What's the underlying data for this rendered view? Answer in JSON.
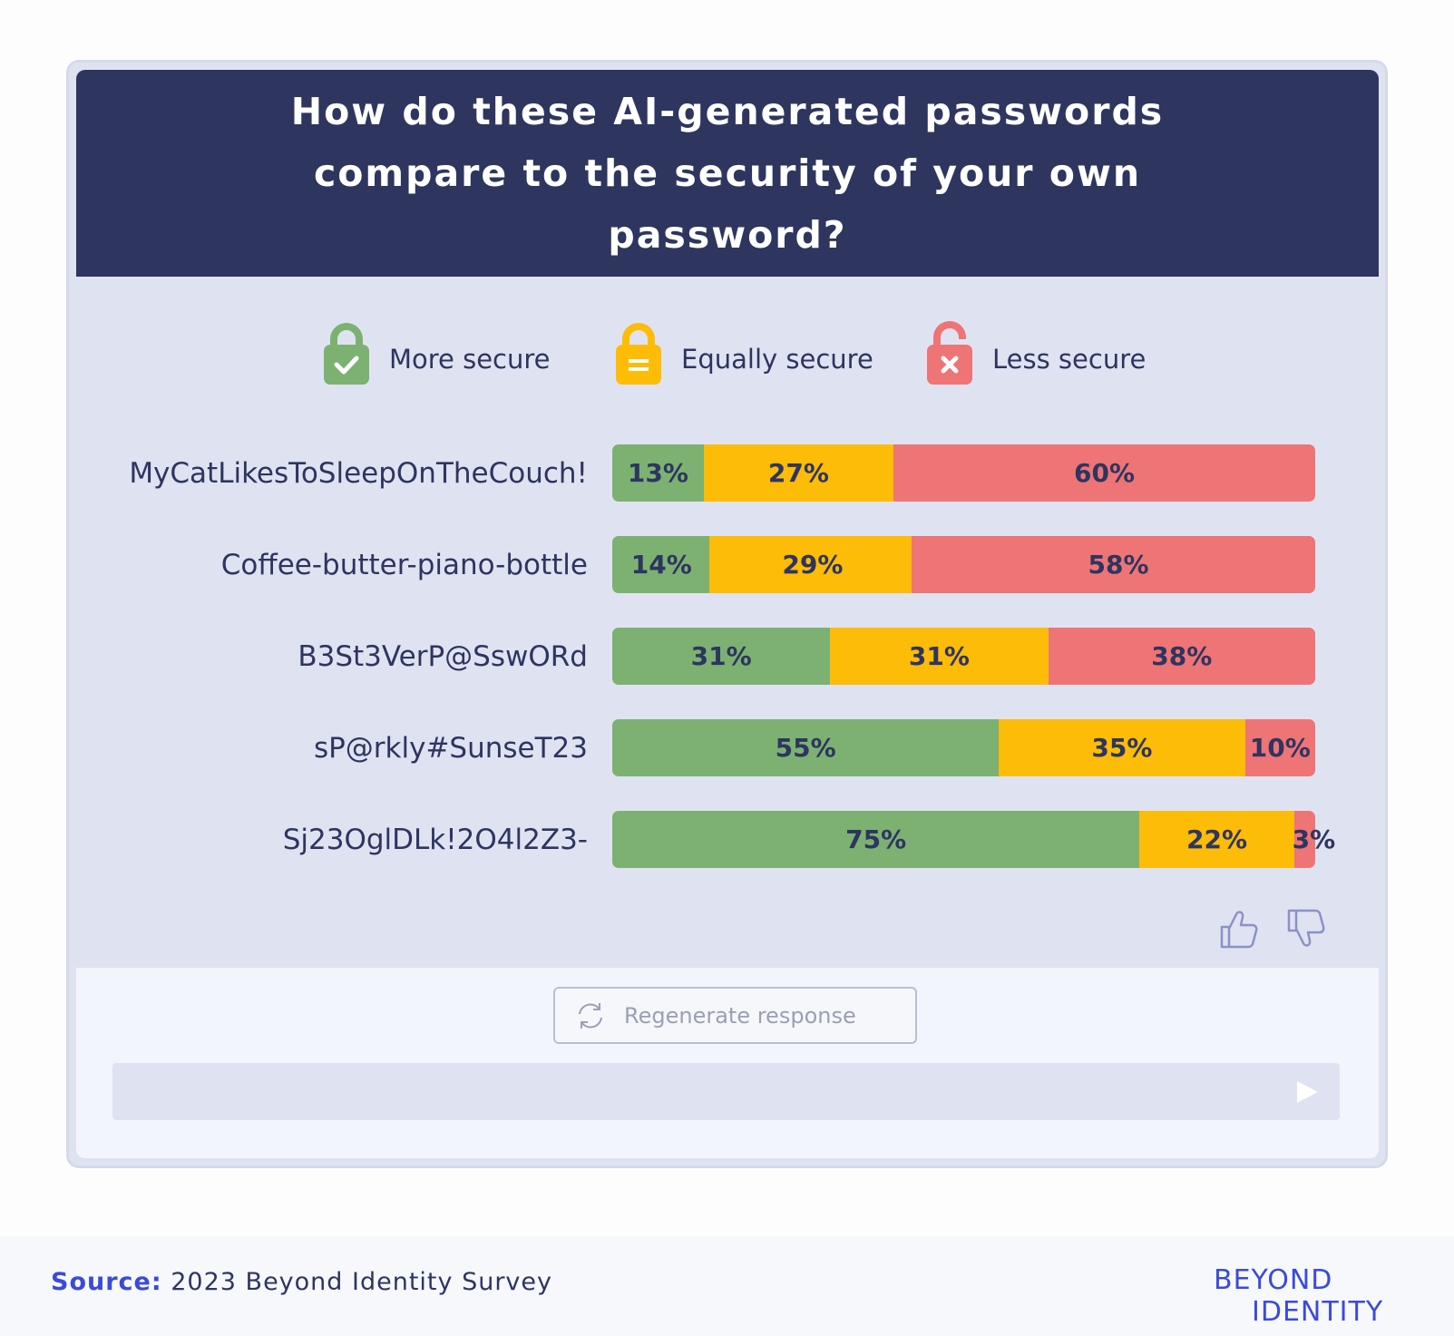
{
  "header": {
    "title": "How do these AI-generated passwords compare to the security of your own password?"
  },
  "legend": {
    "items": [
      {
        "label": "More secure",
        "icon": "locked-check-icon",
        "color": "#7db172"
      },
      {
        "label": "Equally secure",
        "icon": "locked-equal-icon",
        "color": "#fdbc07"
      },
      {
        "label": "Less secure",
        "icon": "unlocked-x-icon",
        "color": "#ef7475"
      }
    ]
  },
  "chart_data": {
    "type": "bar",
    "orientation": "horizontal",
    "stacked": true,
    "normalized": true,
    "title": "How do these AI-generated passwords compare to the security of your own password?",
    "categories": [
      "MyCatLikesToSleepOnTheCouch!",
      "Coffee-butter-piano-bottle",
      "B3St3VerP@SswORd",
      "sP@rkly#SunseT23",
      "Sj23OglDLk!2O4l2Z3-"
    ],
    "series": [
      {
        "name": "More secure",
        "color": "#7db172",
        "values": [
          13,
          14,
          31,
          55,
          75
        ]
      },
      {
        "name": "Equally secure",
        "color": "#fdbc07",
        "values": [
          27,
          29,
          31,
          35,
          22
        ]
      },
      {
        "name": "Less secure",
        "color": "#ef7475",
        "values": [
          60,
          58,
          38,
          10,
          3
        ]
      }
    ],
    "value_suffix": "%",
    "xlim": [
      0,
      100
    ],
    "legend_position": "top"
  },
  "feedback": {
    "thumbs_up_icon": "thumbs-up-icon",
    "thumbs_down_icon": "thumbs-down-icon"
  },
  "composer": {
    "regenerate_label": "Regenerate response",
    "regenerate_icon": "refresh-icon",
    "send_icon": "send-icon"
  },
  "footer": {
    "source_key": "Source:",
    "source_text": "2023 Beyond Identity Survey",
    "logo_line1": "BEYOND",
    "logo_line2": "IDENTITY"
  }
}
